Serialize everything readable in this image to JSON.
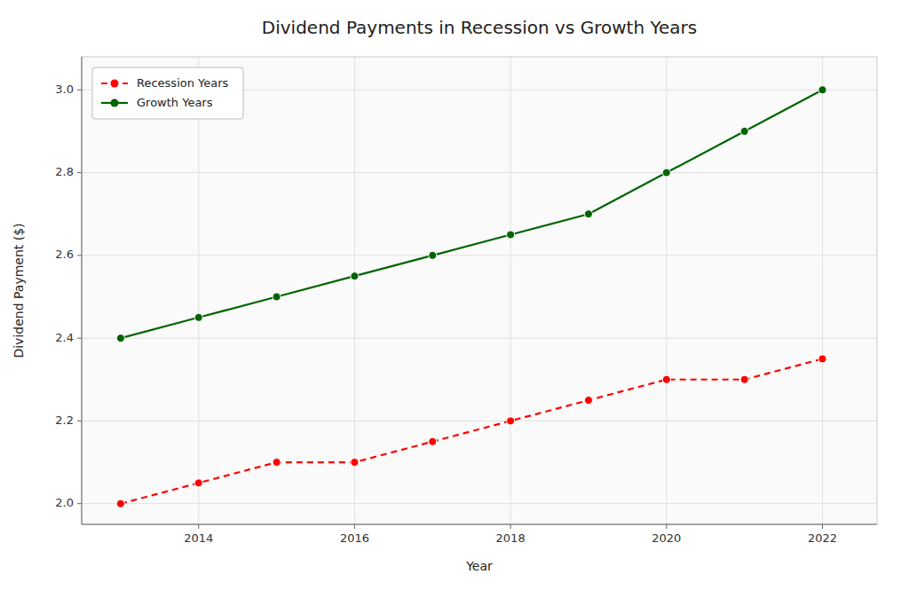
{
  "chart_data": {
    "type": "line",
    "title": "Dividend Payments in Recession vs Growth Years",
    "xlabel": "Year",
    "ylabel": "Dividend Payment ($)",
    "x": [
      2013,
      2014,
      2015,
      2016,
      2017,
      2018,
      2019,
      2020,
      2021,
      2022
    ],
    "series": [
      {
        "name": "Recession Years",
        "color": "#ff0000",
        "line_style": "dashed",
        "marker": "circle",
        "values": [
          2.0,
          2.05,
          2.1,
          2.1,
          2.15,
          2.2,
          2.25,
          2.3,
          2.3,
          2.35
        ]
      },
      {
        "name": "Growth Years",
        "color": "#006400",
        "line_style": "solid",
        "marker": "circle",
        "values": [
          2.4,
          2.45,
          2.5,
          2.55,
          2.6,
          2.65,
          2.7,
          2.8,
          2.9,
          3.0
        ]
      }
    ],
    "xlim": [
      2012.5,
      2022.7
    ],
    "ylim": [
      1.95,
      3.08
    ],
    "xticks": [
      2014,
      2016,
      2018,
      2020,
      2022
    ],
    "yticks": [
      {
        "value": 2.0,
        "label": "2.0"
      },
      2.2,
      2.4,
      2.6,
      2.8,
      {
        "value": 3.0,
        "label": "3.0"
      }
    ],
    "grid": true,
    "legend": "upper-left"
  }
}
